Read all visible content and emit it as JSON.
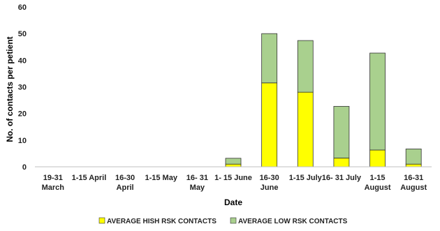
{
  "chart_data": {
    "type": "bar",
    "stacked": true,
    "categories": [
      [
        "19-31",
        "March"
      ],
      [
        "1-15 April"
      ],
      [
        "16-30",
        "April"
      ],
      [
        "1-15 May"
      ],
      [
        "16- 31",
        "May"
      ],
      [
        "1- 15 June"
      ],
      [
        "16-30",
        "June"
      ],
      [
        "1-15 July"
      ],
      [
        "16- 31 July"
      ],
      [
        "1-15",
        "August"
      ],
      [
        "16-31",
        "August"
      ]
    ],
    "series": [
      {
        "name": "AVERAGE HISH RSK CONTACTS",
        "color": "#ffff00",
        "values": [
          0,
          0,
          0,
          0,
          0,
          1,
          31.5,
          28,
          3.3,
          6.3,
          1
        ]
      },
      {
        "name": "AVERAGE LOW RSK CONTACTS",
        "color": "#a9d08e",
        "values": [
          0,
          0,
          0,
          0,
          0,
          2.2,
          18.5,
          19.4,
          19.4,
          36.4,
          5.7
        ]
      }
    ],
    "xlabel": "Date",
    "ylabel": "No. of contacts per petient",
    "ylim": [
      0,
      60
    ],
    "yticks": [
      0,
      10,
      20,
      30,
      40,
      50,
      60
    ],
    "grid": false,
    "legend": "bottom"
  }
}
